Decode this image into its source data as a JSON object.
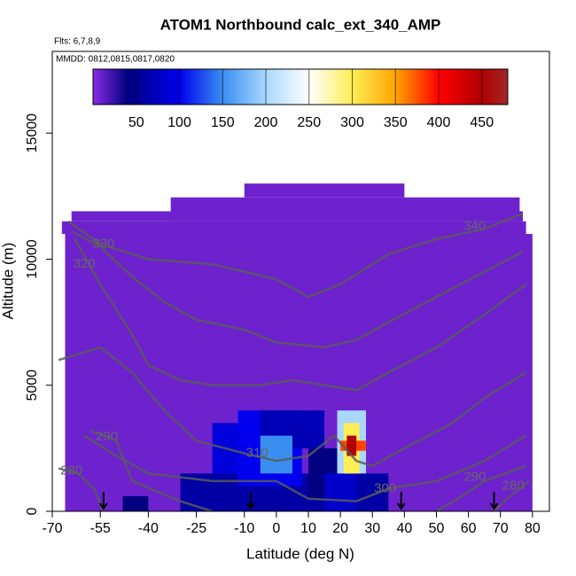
{
  "chart_data": {
    "type": "heatmap",
    "title": "ATOM1 Northbound calc_ext_340_AMP",
    "subtitle": "Flts: 6,7,8,9",
    "annotation": "MMDD: 0812,0815,0817,0820",
    "x_label": "Latitude (deg N)",
    "y_label": "Altitude (m)",
    "xlim": [
      -70,
      85.3
    ],
    "ylim": [
      0,
      18240
    ],
    "xticks": [
      -70,
      -55,
      -40,
      -25,
      -10,
      0,
      10,
      20,
      30,
      40,
      50,
      60,
      70,
      80
    ],
    "yticks": [
      0,
      5000,
      10000,
      15000
    ],
    "clim": [
      0,
      480
    ],
    "cticks": [
      50,
      100,
      150,
      200,
      250,
      300,
      350,
      400,
      450
    ],
    "colorscale": [
      [
        0,
        "#8a2be2"
      ],
      [
        40,
        "#000080"
      ],
      [
        100,
        "#0000ee"
      ],
      [
        150,
        "#3a8ef0"
      ],
      [
        200,
        "#a8d8ff"
      ],
      [
        250,
        "#ffffff"
      ],
      [
        300,
        "#ffee55"
      ],
      [
        350,
        "#ffa500"
      ],
      [
        400,
        "#ff0000"
      ],
      [
        450,
        "#b00000"
      ],
      [
        480,
        "#a02828"
      ]
    ],
    "cells": [
      {
        "x": [
          -66,
          80
        ],
        "y": [
          0,
          11000
        ],
        "value": 8
      },
      {
        "x": [
          -67,
          78
        ],
        "y": [
          11000,
          11500
        ],
        "value": 8
      },
      {
        "x": [
          -64,
          77
        ],
        "y": [
          11500,
          11900
        ],
        "value": 8
      },
      {
        "x": [
          -33,
          76
        ],
        "y": [
          11500,
          12450
        ],
        "value": 8
      },
      {
        "x": [
          -10,
          40
        ],
        "y": [
          12450,
          13000
        ],
        "value": 8
      },
      {
        "x": [
          -30,
          35
        ],
        "y": [
          0,
          1500
        ],
        "value": 60
      },
      {
        "x": [
          -48,
          -40
        ],
        "y": [
          0,
          600
        ],
        "value": 40
      },
      {
        "x": [
          -20,
          -5
        ],
        "y": [
          1500,
          3500
        ],
        "value": 90
      },
      {
        "x": [
          -12,
          8
        ],
        "y": [
          1000,
          4000
        ],
        "value": 100
      },
      {
        "x": [
          -5,
          15
        ],
        "y": [
          2500,
          4000
        ],
        "value": 70
      },
      {
        "x": [
          10,
          20
        ],
        "y": [
          500,
          2500
        ],
        "value": 40
      },
      {
        "x": [
          15,
          25
        ],
        "y": [
          0,
          1500
        ],
        "value": 80
      },
      {
        "x": [
          -5,
          5
        ],
        "y": [
          1500,
          3000
        ],
        "value": 150
      },
      {
        "x": [
          19,
          28
        ],
        "y": [
          1500,
          4000
        ],
        "value": 200
      },
      {
        "x": [
          21,
          26
        ],
        "y": [
          1500,
          3500
        ],
        "value": 300
      },
      {
        "x": [
          20,
          28
        ],
        "y": [
          2400,
          2800
        ],
        "value": 380
      },
      {
        "x": [
          22,
          25
        ],
        "y": [
          2200,
          3000
        ],
        "value": 450
      }
    ],
    "contours": [
      {
        "level": "340",
        "x": [
          -65,
          -55,
          -40,
          -20,
          0,
          10,
          20,
          35,
          50,
          65,
          77
        ],
        "y": [
          11500,
          10600,
          10000,
          9800,
          9200,
          8500,
          9000,
          10200,
          10800,
          11200,
          11800
        ],
        "label_at": [
          62,
          11300
        ]
      },
      {
        "level": "330",
        "x": [
          -64,
          -55,
          -45,
          -35,
          -25,
          -10,
          0,
          15,
          25,
          35,
          50,
          65,
          77
        ],
        "y": [
          11100,
          10500,
          9300,
          8300,
          7600,
          7200,
          6700,
          6500,
          6800,
          7500,
          8500,
          9500,
          10300
        ],
        "label_at": [
          -54,
          10600
        ]
      },
      {
        "level": "320",
        "x": [
          -63,
          -55,
          -45,
          -40,
          -30,
          -20,
          -5,
          5,
          15,
          25,
          35,
          50,
          65,
          78
        ],
        "y": [
          10800,
          9000,
          7000,
          5800,
          5200,
          5000,
          5000,
          5200,
          5000,
          4800,
          5500,
          6500,
          7800,
          9000
        ],
        "label_at": [
          -60,
          9800
        ]
      },
      {
        "level": "310",
        "x": [
          -68,
          -55,
          -45,
          -35,
          -25,
          -10,
          0,
          10,
          18,
          25,
          30,
          40,
          55,
          65,
          78
        ],
        "y": [
          6000,
          6500,
          5500,
          4000,
          2800,
          2300,
          2000,
          2200,
          3000,
          2000,
          1800,
          2500,
          3500,
          4500,
          5500
        ],
        "label_at": [
          -6,
          2300
        ]
      },
      {
        "level": "300",
        "x": [
          -60,
          -50,
          -40,
          -20,
          0,
          10,
          25,
          35,
          50,
          65,
          78
        ],
        "y": [
          3000,
          2200,
          1500,
          1200,
          1200,
          500,
          400,
          900,
          1200,
          2000,
          3000
        ],
        "label_at": [
          34,
          900
        ]
      },
      {
        "level": "290",
        "x": [
          -58,
          -50,
          -45,
          -30,
          -20
        ],
        "y": [
          3200,
          2800,
          1200,
          400,
          0
        ],
        "label_at": [
          -53,
          2950
        ]
      },
      {
        "level": "290",
        "x": [
          50,
          58,
          65,
          78
        ],
        "y": [
          0,
          600,
          1200,
          1800
        ],
        "label_at": [
          62,
          1350
        ]
      },
      {
        "level": "280",
        "x": [
          -68,
          -62,
          -57,
          -54
        ],
        "y": [
          1700,
          1500,
          900,
          0
        ],
        "label_at": [
          -64,
          1600
        ]
      },
      {
        "level": "280",
        "x": [
          68,
          73,
          79
        ],
        "y": [
          0,
          600,
          1200
        ],
        "label_at": [
          74,
          1000
        ]
      }
    ],
    "flight_markers": [
      -54,
      -8,
      39,
      68
    ]
  }
}
